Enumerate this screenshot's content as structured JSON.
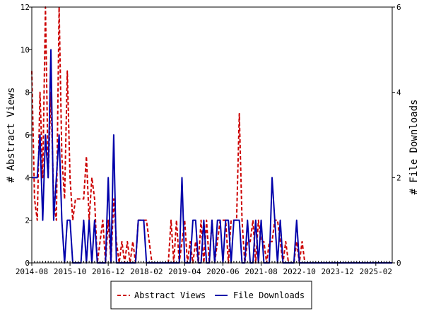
{
  "chart_data": {
    "type": "line",
    "x_unit": "month",
    "x_start": "2014-08",
    "x_end": "2025-08",
    "x_tick_labels": [
      "2014-08",
      "2015-10",
      "2016-12",
      "2018-02",
      "2019-04",
      "2020-06",
      "2021-08",
      "2022-10",
      "2023-12",
      "2025-02"
    ],
    "left_axis": {
      "label": "# Abstract Views",
      "ylim": [
        0,
        12
      ],
      "ticks": [
        0,
        2,
        4,
        6,
        8,
        10,
        12
      ]
    },
    "right_axis": {
      "label": "# File Downloads",
      "ylim": [
        0,
        6
      ],
      "ticks": [
        0,
        2,
        4,
        6
      ]
    },
    "legend_position": "bottom-center",
    "series": [
      {
        "name": "Abstract Views",
        "axis": "left",
        "style": "dashed",
        "color": "#cc0000",
        "points": [
          [
            "2014-08",
            9
          ],
          [
            "2014-09",
            3
          ],
          [
            "2014-10",
            2
          ],
          [
            "2014-11",
            8
          ],
          [
            "2014-12",
            4
          ],
          [
            "2015-01",
            12
          ],
          [
            "2015-02",
            4
          ],
          [
            "2015-03",
            8
          ],
          [
            "2015-04",
            3
          ],
          [
            "2015-05",
            2
          ],
          [
            "2015-06",
            12
          ],
          [
            "2015-07",
            5
          ],
          [
            "2015-08",
            3
          ],
          [
            "2015-09",
            9
          ],
          [
            "2015-10",
            4
          ],
          [
            "2015-11",
            2
          ],
          [
            "2015-12",
            3
          ],
          [
            "2016-01",
            3
          ],
          [
            "2016-02",
            3
          ],
          [
            "2016-03",
            3
          ],
          [
            "2016-04",
            5
          ],
          [
            "2016-05",
            2
          ],
          [
            "2016-06",
            4
          ],
          [
            "2016-07",
            3
          ],
          [
            "2016-08",
            0
          ],
          [
            "2016-09",
            1
          ],
          [
            "2016-10",
            2
          ],
          [
            "2016-11",
            0
          ],
          [
            "2016-12",
            2
          ],
          [
            "2017-01",
            0
          ],
          [
            "2017-02",
            3
          ],
          [
            "2017-03",
            1
          ],
          [
            "2017-04",
            0
          ],
          [
            "2017-05",
            1
          ],
          [
            "2017-06",
            0
          ],
          [
            "2017-07",
            1
          ],
          [
            "2017-08",
            0
          ],
          [
            "2017-09",
            1
          ],
          [
            "2017-10",
            0
          ],
          [
            "2017-11",
            2
          ],
          [
            "2017-12",
            2
          ],
          [
            "2018-01",
            2
          ],
          [
            "2018-02",
            2
          ],
          [
            "2018-03",
            1
          ],
          [
            "2018-04",
            0
          ],
          [
            "2018-05",
            0
          ],
          [
            "2018-06",
            0
          ],
          [
            "2018-07",
            0
          ],
          [
            "2018-08",
            0
          ],
          [
            "2018-09",
            0
          ],
          [
            "2018-10",
            0
          ],
          [
            "2018-11",
            2
          ],
          [
            "2018-12",
            0
          ],
          [
            "2019-01",
            2
          ],
          [
            "2019-02",
            0
          ],
          [
            "2019-03",
            1
          ],
          [
            "2019-04",
            2
          ],
          [
            "2019-05",
            0
          ],
          [
            "2019-06",
            1
          ],
          [
            "2019-07",
            0
          ],
          [
            "2019-08",
            1
          ],
          [
            "2019-09",
            0
          ],
          [
            "2019-10",
            2
          ],
          [
            "2019-11",
            0
          ],
          [
            "2019-12",
            2
          ],
          [
            "2020-01",
            0
          ],
          [
            "2020-02",
            2
          ],
          [
            "2020-03",
            0
          ],
          [
            "2020-04",
            1
          ],
          [
            "2020-05",
            2
          ],
          [
            "2020-06",
            2
          ],
          [
            "2020-07",
            2
          ],
          [
            "2020-08",
            0
          ],
          [
            "2020-09",
            2
          ],
          [
            "2020-10",
            2
          ],
          [
            "2020-11",
            2
          ],
          [
            "2020-12",
            7
          ],
          [
            "2021-01",
            2
          ],
          [
            "2021-02",
            0
          ],
          [
            "2021-03",
            1
          ],
          [
            "2021-04",
            1
          ],
          [
            "2021-05",
            2
          ],
          [
            "2021-06",
            0
          ],
          [
            "2021-07",
            2
          ],
          [
            "2021-08",
            1
          ],
          [
            "2021-09",
            1
          ],
          [
            "2021-10",
            0
          ],
          [
            "2021-11",
            1
          ],
          [
            "2021-12",
            1
          ],
          [
            "2022-01",
            2
          ],
          [
            "2022-02",
            2
          ],
          [
            "2022-03",
            1
          ],
          [
            "2022-04",
            0
          ],
          [
            "2022-05",
            1
          ],
          [
            "2022-06",
            0
          ],
          [
            "2022-07",
            0
          ],
          [
            "2022-08",
            0
          ],
          [
            "2022-09",
            1
          ],
          [
            "2022-10",
            0
          ],
          [
            "2022-11",
            1
          ],
          [
            "2022-12",
            0
          ],
          [
            "2023-01",
            0
          ],
          [
            "2025-08",
            0
          ]
        ]
      },
      {
        "name": "File Downloads",
        "axis": "right",
        "style": "solid",
        "color": "#0000aa",
        "points": [
          [
            "2014-08",
            2
          ],
          [
            "2014-09",
            2
          ],
          [
            "2014-10",
            2
          ],
          [
            "2014-11",
            3
          ],
          [
            "2014-12",
            1
          ],
          [
            "2015-01",
            3
          ],
          [
            "2015-02",
            2
          ],
          [
            "2015-03",
            5
          ],
          [
            "2015-04",
            1
          ],
          [
            "2015-05",
            2
          ],
          [
            "2015-06",
            3
          ],
          [
            "2015-07",
            1
          ],
          [
            "2015-08",
            0
          ],
          [
            "2015-09",
            1
          ],
          [
            "2015-10",
            1
          ],
          [
            "2015-11",
            0
          ],
          [
            "2015-12",
            0
          ],
          [
            "2016-01",
            0
          ],
          [
            "2016-02",
            0
          ],
          [
            "2016-03",
            1
          ],
          [
            "2016-04",
            0
          ],
          [
            "2016-05",
            1
          ],
          [
            "2016-06",
            0
          ],
          [
            "2016-07",
            1
          ],
          [
            "2016-08",
            0
          ],
          [
            "2016-09",
            0
          ],
          [
            "2016-10",
            0
          ],
          [
            "2016-11",
            0
          ],
          [
            "2016-12",
            2
          ],
          [
            "2017-01",
            0
          ],
          [
            "2017-02",
            3
          ],
          [
            "2017-03",
            0
          ],
          [
            "2017-04",
            0
          ],
          [
            "2017-05",
            0
          ],
          [
            "2017-06",
            0
          ],
          [
            "2017-07",
            0
          ],
          [
            "2017-08",
            0
          ],
          [
            "2017-09",
            0
          ],
          [
            "2017-10",
            0
          ],
          [
            "2017-11",
            1
          ],
          [
            "2017-12",
            1
          ],
          [
            "2018-01",
            1
          ],
          [
            "2018-02",
            0
          ],
          [
            "2018-03",
            0
          ],
          [
            "2018-04",
            0
          ],
          [
            "2018-05",
            0
          ],
          [
            "2018-06",
            0
          ],
          [
            "2018-07",
            0
          ],
          [
            "2018-08",
            0
          ],
          [
            "2018-09",
            0
          ],
          [
            "2018-10",
            0
          ],
          [
            "2018-11",
            0
          ],
          [
            "2018-12",
            0
          ],
          [
            "2019-01",
            0
          ],
          [
            "2019-02",
            0
          ],
          [
            "2019-03",
            2
          ],
          [
            "2019-04",
            0
          ],
          [
            "2019-05",
            0
          ],
          [
            "2019-06",
            0
          ],
          [
            "2019-07",
            1
          ],
          [
            "2019-08",
            1
          ],
          [
            "2019-09",
            0
          ],
          [
            "2019-10",
            0
          ],
          [
            "2019-11",
            1
          ],
          [
            "2019-12",
            0
          ],
          [
            "2020-01",
            0
          ],
          [
            "2020-02",
            1
          ],
          [
            "2020-03",
            0
          ],
          [
            "2020-04",
            1
          ],
          [
            "2020-05",
            1
          ],
          [
            "2020-06",
            0
          ],
          [
            "2020-07",
            1
          ],
          [
            "2020-08",
            1
          ],
          [
            "2020-09",
            0
          ],
          [
            "2020-10",
            1
          ],
          [
            "2020-11",
            1
          ],
          [
            "2020-12",
            1
          ],
          [
            "2021-01",
            0
          ],
          [
            "2021-02",
            0
          ],
          [
            "2021-03",
            1
          ],
          [
            "2021-04",
            0
          ],
          [
            "2021-05",
            0
          ],
          [
            "2021-06",
            1
          ],
          [
            "2021-07",
            0
          ],
          [
            "2021-08",
            1
          ],
          [
            "2021-09",
            0
          ],
          [
            "2021-10",
            0
          ],
          [
            "2021-11",
            0
          ],
          [
            "2021-12",
            2
          ],
          [
            "2022-01",
            1
          ],
          [
            "2022-02",
            0
          ],
          [
            "2022-03",
            1
          ],
          [
            "2022-04",
            0
          ],
          [
            "2022-05",
            0
          ],
          [
            "2022-06",
            0
          ],
          [
            "2022-07",
            0
          ],
          [
            "2022-08",
            0
          ],
          [
            "2022-09",
            1
          ],
          [
            "2022-10",
            0
          ],
          [
            "2022-11",
            0
          ],
          [
            "2022-12",
            0
          ],
          [
            "2023-01",
            0
          ],
          [
            "2025-08",
            0
          ]
        ]
      }
    ]
  }
}
